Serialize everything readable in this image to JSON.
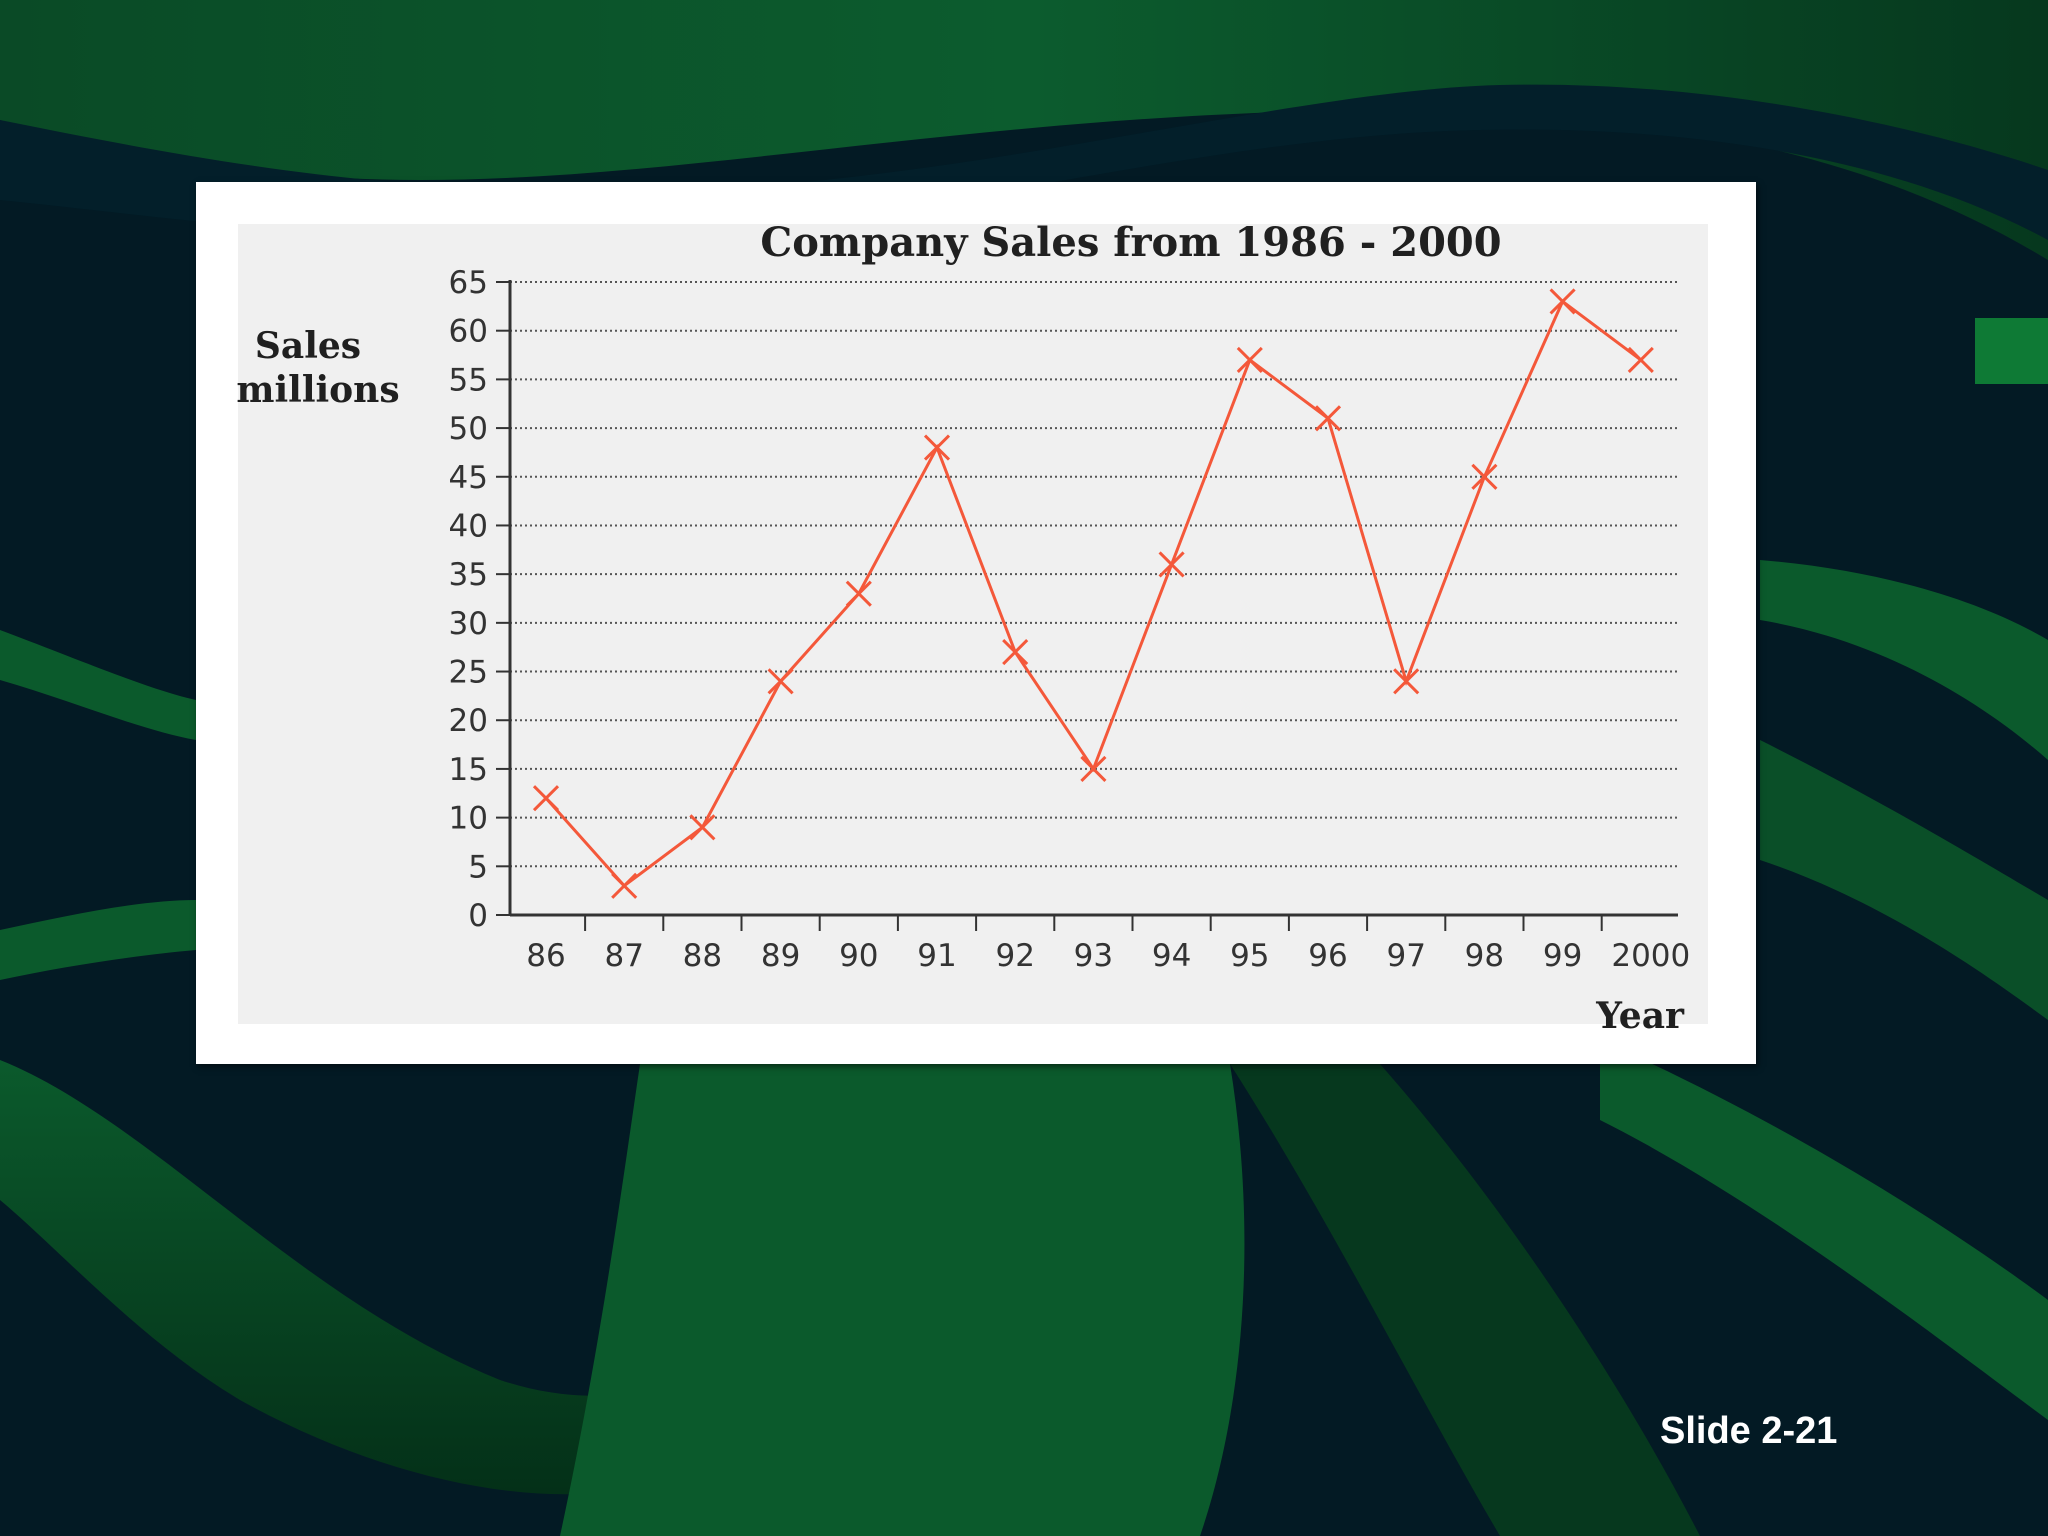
{
  "slide": {
    "slide_number": "Slide 2-21"
  },
  "colors": {
    "background_dark": "#031a24",
    "background_green": "#0b5a2c",
    "plot_background": "#f0f0f0",
    "line_color": "#f4583a"
  },
  "chart_data": {
    "type": "line",
    "title": "Company Sales from 1986 - 2000",
    "ylabel_line1": "Sales",
    "ylabel_line2": "millions",
    "xlabel": "Year",
    "categories": [
      "86",
      "87",
      "88",
      "89",
      "90",
      "91",
      "92",
      "93",
      "94",
      "95",
      "96",
      "97",
      "98",
      "99",
      "2000"
    ],
    "series": [
      {
        "values": [
          12,
          3,
          9,
          24,
          33,
          48,
          27,
          15,
          36,
          57,
          51,
          24,
          45,
          63,
          57
        ],
        "marker": "x"
      }
    ],
    "ylim": [
      0,
      65
    ],
    "yticks": [
      0,
      5,
      10,
      15,
      20,
      25,
      30,
      35,
      40,
      45,
      50,
      55,
      60,
      65
    ],
    "grid": "horizontal dotted",
    "legend": "none"
  }
}
